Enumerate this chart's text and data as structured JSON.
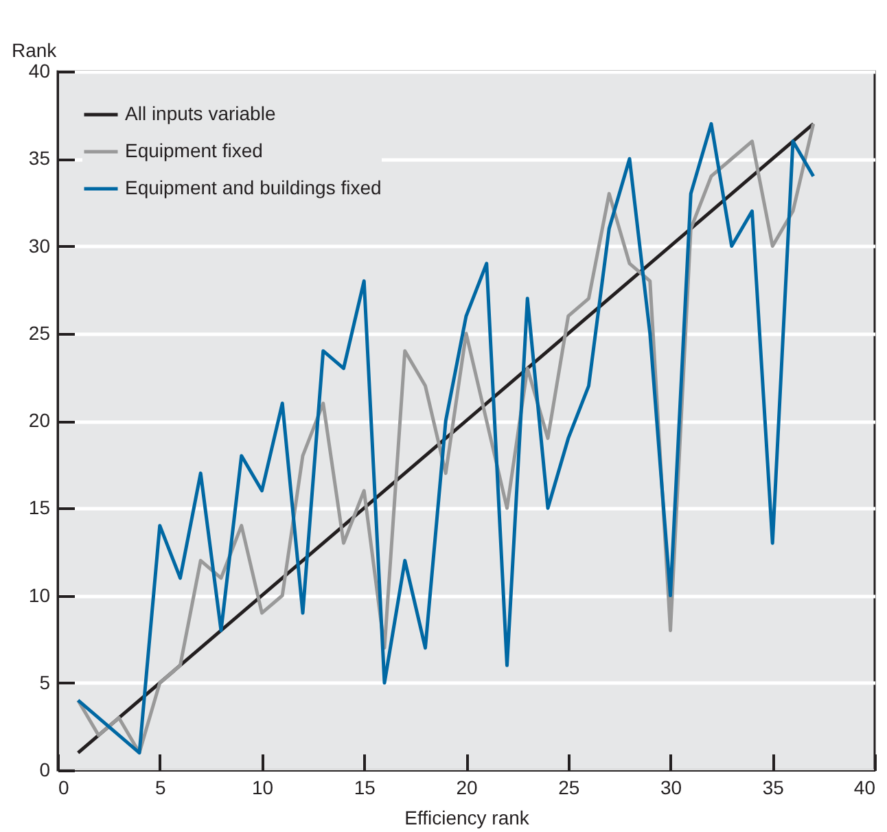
{
  "chart_data": {
    "type": "line",
    "xlabel": "Efficiency rank",
    "ylabel": "Rank",
    "xlim": [
      0,
      40
    ],
    "ylim": [
      0,
      40
    ],
    "xticks": [
      0,
      5,
      10,
      15,
      20,
      25,
      30,
      35,
      40
    ],
    "yticks": [
      0,
      5,
      10,
      15,
      20,
      25,
      30,
      35,
      40
    ],
    "grid": "y",
    "legend": "top left",
    "marker": "none",
    "line_style": "solid",
    "series": [
      {
        "name": "All inputs variable",
        "color": "#231f20",
        "x": [
          1,
          37
        ],
        "values": [
          1,
          37
        ]
      },
      {
        "name": "Equipment fixed",
        "color": "#999999",
        "x": [
          1,
          2,
          3,
          4,
          5,
          6,
          7,
          8,
          9,
          10,
          11,
          12,
          13,
          14,
          15,
          16,
          17,
          18,
          19,
          20,
          21,
          22,
          23,
          24,
          25,
          26,
          27,
          28,
          29,
          30,
          31,
          32,
          33,
          34,
          35,
          36,
          37
        ],
        "values": [
          4,
          2,
          3,
          1,
          5,
          6,
          12,
          11,
          14,
          9,
          10,
          18,
          21,
          13,
          16,
          7,
          24,
          22,
          17,
          25,
          20,
          15,
          23,
          19,
          26,
          27,
          33,
          29,
          28,
          8,
          31,
          34,
          35,
          36,
          30,
          32,
          37
        ]
      },
      {
        "name": "Equipment and buildings fixed",
        "color": "#0068a3",
        "x": [
          1,
          2,
          3,
          4,
          5,
          6,
          7,
          8,
          9,
          10,
          11,
          12,
          13,
          14,
          15,
          16,
          17,
          18,
          19,
          20,
          21,
          22,
          23,
          24,
          25,
          26,
          27,
          28,
          29,
          30,
          31,
          32,
          33,
          34,
          35,
          36,
          37
        ],
        "values": [
          4,
          3,
          2,
          1,
          14,
          11,
          17,
          8,
          18,
          16,
          21,
          9,
          24,
          23,
          28,
          5,
          12,
          7,
          20,
          26,
          29,
          6,
          27,
          15,
          19,
          22,
          31,
          35,
          25,
          10,
          33,
          37,
          30,
          32,
          13,
          36,
          34
        ]
      }
    ]
  }
}
